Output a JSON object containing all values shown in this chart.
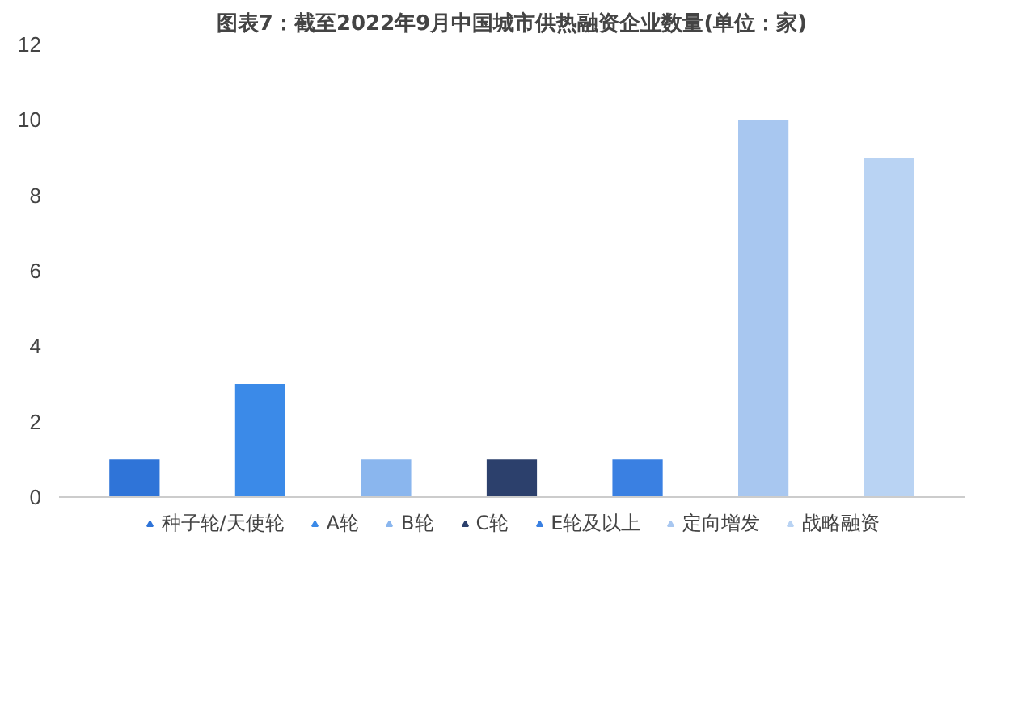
{
  "chart_data": {
    "type": "bar",
    "title": "图表7：截至2022年9月中国城市供热融资企业数量(单位：家)",
    "categories": [
      null,
      null,
      null,
      null,
      null,
      null,
      null
    ],
    "series": [
      {
        "name": "种子轮/天使轮",
        "color": "#2f74d8",
        "values": [
          1,
          null,
          null,
          null,
          null,
          null,
          null
        ]
      },
      {
        "name": "A轮",
        "color": "#3b8ae8",
        "values": [
          null,
          3,
          null,
          null,
          null,
          null,
          null
        ]
      },
      {
        "name": "B轮",
        "color": "#8ab6ee",
        "values": [
          null,
          null,
          1,
          null,
          null,
          null,
          null
        ]
      },
      {
        "name": "C轮",
        "color": "#2c406c",
        "values": [
          null,
          null,
          null,
          1,
          null,
          null,
          null
        ]
      },
      {
        "name": "E轮及以上",
        "color": "#3a80e2",
        "values": [
          null,
          null,
          null,
          null,
          1,
          null,
          null
        ]
      },
      {
        "name": "定向增发",
        "color": "#a8c7f0",
        "values": [
          null,
          null,
          null,
          null,
          null,
          10,
          null
        ]
      },
      {
        "name": "战略融资",
        "color": "#b9d3f3",
        "values": [
          null,
          null,
          null,
          null,
          null,
          null,
          9
        ]
      }
    ],
    "ylim": [
      0,
      12
    ],
    "yticks": [
      0,
      2,
      4,
      6,
      8,
      10,
      12
    ],
    "legend": "bottom",
    "marker": "triangle"
  }
}
